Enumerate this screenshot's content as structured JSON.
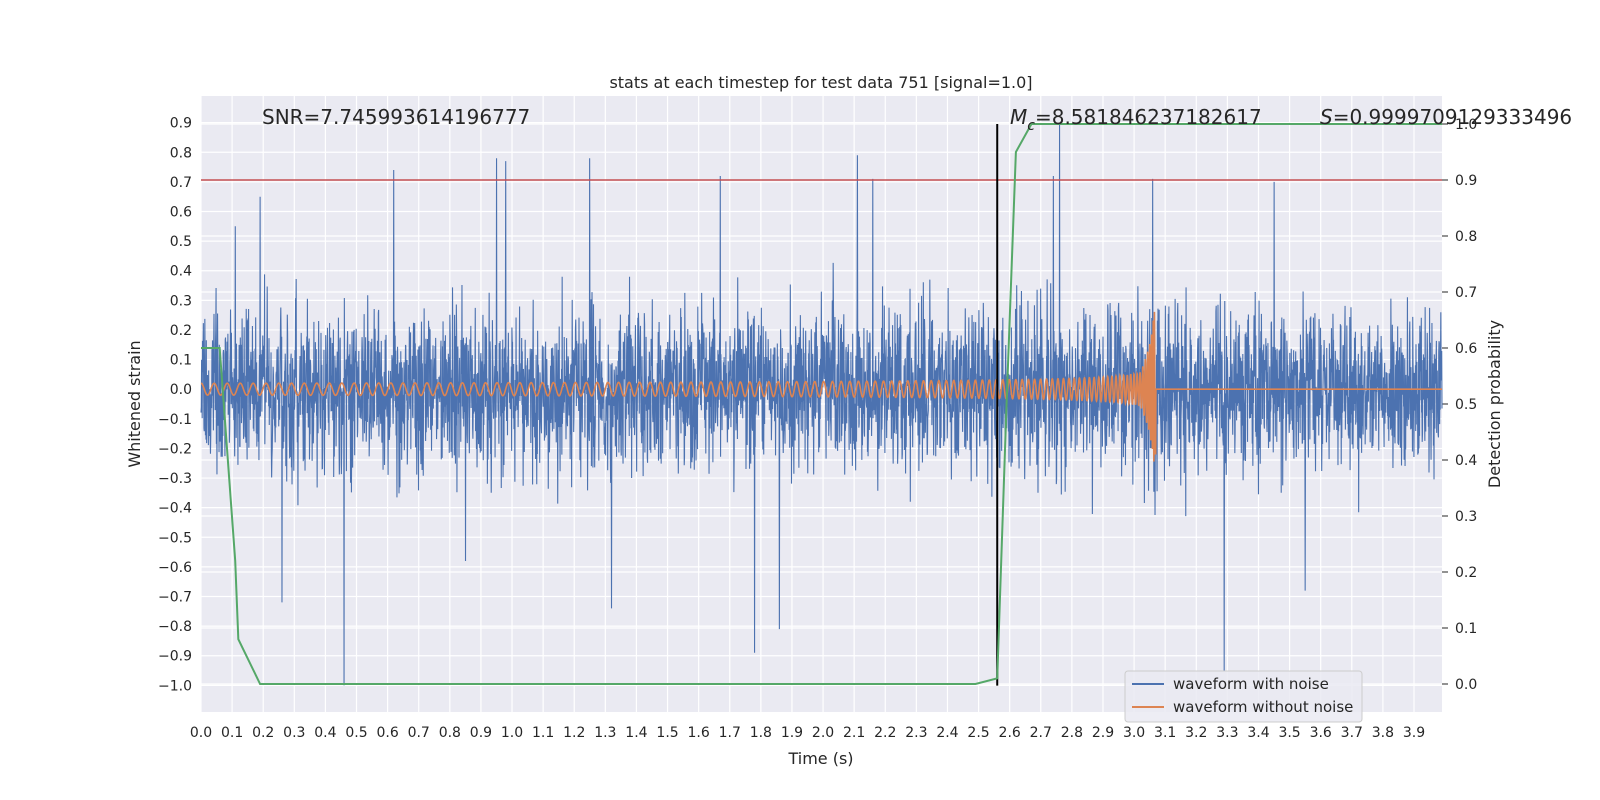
{
  "chart_data": {
    "type": "line",
    "title": "stats at each timestep for test data 751 [signal=1.0]",
    "xlabel": "Time (s)",
    "ylabel": "Whitened strain",
    "y2label": "Detection probability",
    "xlim": [
      0.0,
      3.99
    ],
    "ylim": [
      -1.09,
      0.99
    ],
    "y2lim": [
      -0.05,
      1.05
    ],
    "xticks": [
      "0.0",
      "0.1",
      "0.2",
      "0.3",
      "0.4",
      "0.5",
      "0.6",
      "0.7",
      "0.8",
      "0.9",
      "1.0",
      "1.1",
      "1.2",
      "1.3",
      "1.4",
      "1.5",
      "1.6",
      "1.7",
      "1.8",
      "1.9",
      "2.0",
      "2.1",
      "2.2",
      "2.3",
      "2.4",
      "2.5",
      "2.6",
      "2.7",
      "2.8",
      "2.9",
      "3.0",
      "3.1",
      "3.2",
      "3.3",
      "3.4",
      "3.5",
      "3.6",
      "3.7",
      "3.8",
      "3.9"
    ],
    "yticks": [
      "0.9",
      "0.8",
      "0.7",
      "0.6",
      "0.5",
      "0.4",
      "0.3",
      "0.2",
      "0.1",
      "0.0",
      "−0.1",
      "−0.2",
      "−0.3",
      "−0.4",
      "−0.5",
      "−0.6",
      "−0.7",
      "−0.8",
      "−0.9",
      "−1.0"
    ],
    "y2ticks": [
      "1.0",
      "0.9",
      "0.8",
      "0.7",
      "0.6",
      "0.5",
      "0.4",
      "0.3",
      "0.2",
      "0.1",
      "0.0"
    ],
    "annotations": {
      "snr": "SNR=7.745993614196777",
      "mc_symbol": "M",
      "mc_sub": "c",
      "mc_value": "=8.581846237182617",
      "s_symbol": "S",
      "s_value": "=0.9999709129333496"
    },
    "threshold_line": {
      "value": 0.9,
      "axis": "y2",
      "color": "#c44e52"
    },
    "merger_marker": {
      "x": 2.56,
      "color": "#000000"
    },
    "noisy_waveform": {
      "name": "waveform with noise",
      "color": "#4c72b0",
      "amplitude_range": [
        -1.0,
        0.9
      ],
      "tall_spikes": [
        {
          "x": 0.11,
          "y": 0.55
        },
        {
          "x": 0.19,
          "y": 0.65
        },
        {
          "x": 0.26,
          "y": -0.72
        },
        {
          "x": 0.46,
          "y": -1.0
        },
        {
          "x": 0.62,
          "y": 0.74
        },
        {
          "x": 0.85,
          "y": -0.58
        },
        {
          "x": 0.95,
          "y": 0.78
        },
        {
          "x": 0.98,
          "y": 0.77
        },
        {
          "x": 1.25,
          "y": 0.78
        },
        {
          "x": 1.32,
          "y": -0.74
        },
        {
          "x": 1.67,
          "y": 0.72
        },
        {
          "x": 1.78,
          "y": -0.89
        },
        {
          "x": 1.86,
          "y": -0.81
        },
        {
          "x": 2.11,
          "y": 0.79
        },
        {
          "x": 2.16,
          "y": 0.71
        },
        {
          "x": 2.74,
          "y": 0.72
        },
        {
          "x": 2.76,
          "y": 0.9
        },
        {
          "x": 3.06,
          "y": 0.71
        },
        {
          "x": 3.29,
          "y": -0.95
        },
        {
          "x": 3.45,
          "y": 0.7
        },
        {
          "x": 3.55,
          "y": -0.68
        }
      ]
    },
    "clean_waveform": {
      "name": "waveform without noise",
      "color": "#dd8452",
      "start_freq_hz": 20,
      "merger_time": 3.07,
      "amplitude_start": 0.02,
      "amplitude_peak": 0.27
    },
    "detection_probability": {
      "color": "#55a868",
      "x": [
        0.0,
        0.06,
        0.11,
        0.12,
        0.19,
        2.49,
        2.56,
        2.59,
        2.62,
        2.67,
        3.99
      ],
      "y": [
        0.6,
        0.6,
        0.22,
        0.08,
        0.0,
        0.0,
        0.01,
        0.5,
        0.95,
        1.0,
        1.0
      ]
    },
    "legend": {
      "location": "lower-right",
      "entries": [
        {
          "label": "waveform with noise",
          "color": "#4c72b0"
        },
        {
          "label": "waveform without noise",
          "color": "#dd8452"
        }
      ]
    }
  }
}
